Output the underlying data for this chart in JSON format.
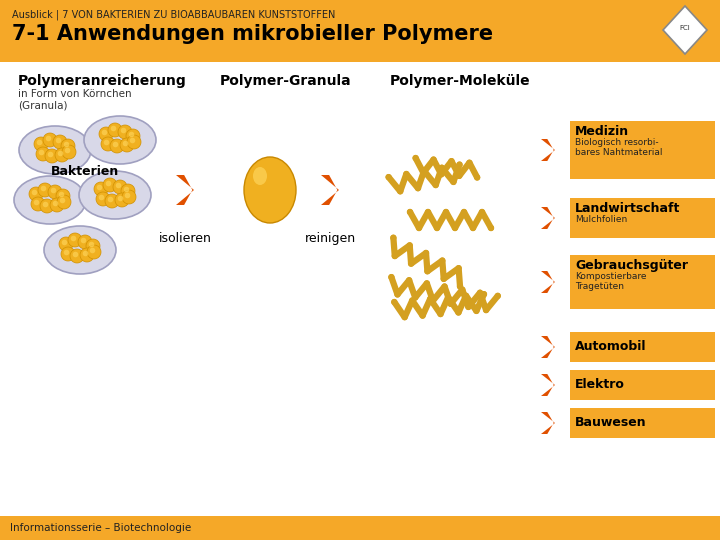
{
  "header_color": "#F5A828",
  "header_subtitle": "Ausblick | 7 VON BAKTERIEN ZU BIOABBAUBAREN KUNSTSTOFFEN",
  "header_title": "7-1 Anwendungen mikrobieller Polymere",
  "bg_color": "#FFFFFF",
  "footer_color": "#F5A828",
  "footer_text": "Informationsserie – Biotechnologie",
  "col1_title": "Polymeranreicherung",
  "col1_sub": "in Form von Körnchen\n(Granula)",
  "col2_title": "Polymer-Granula",
  "col3_title": "Polymer-Moleküle",
  "bakterien_label": "Bakterien",
  "isolieren_label": "isolieren",
  "reinigen_label": "reinigen",
  "orange_color": "#E05000",
  "box_color": "#F5A828",
  "cell_fill": "#D8D8E8",
  "cell_edge": "#A0A0C0",
  "blob_fill": "#F0B020",
  "blob_edge": "#D09000",
  "granula_fill": "#F0B020",
  "granula_edge": "#C88800",
  "polymer_color": "#D4A020",
  "applications": [
    {
      "title": "Medizin",
      "sub": "Biologisch resorbi-\nbares Nahtmaterial",
      "has_box": true
    },
    {
      "title": "Landwirtschaft",
      "sub": "Mulchfolien",
      "has_box": true
    },
    {
      "title": "Gebrauchsgüter",
      "sub": "Kompostierbare\nTragetüten",
      "has_box": true
    },
    {
      "title": "Automobil",
      "sub": "",
      "has_box": true
    },
    {
      "title": "Elektro",
      "sub": "",
      "has_box": true
    },
    {
      "title": "Bauwesen",
      "sub": "",
      "has_box": true
    }
  ]
}
